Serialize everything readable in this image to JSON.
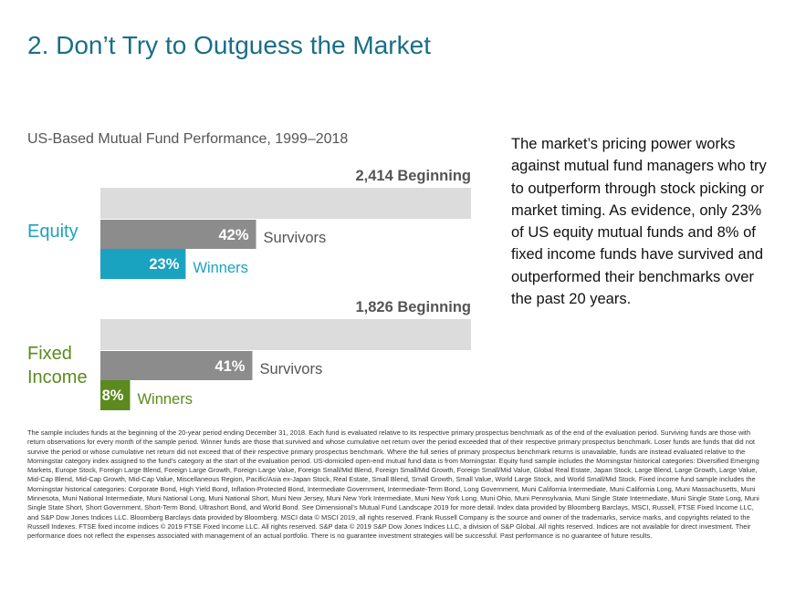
{
  "title": "2. Don’t Try to Outguess the Market",
  "description": "The market’s pricing power works against mutual fund managers who try to outperform through stock picking or market timing. As evidence, only 23% of US equity mutual funds and 8% of fixed income funds have survived and outperformed their benchmarks over the past 20 years.",
  "footnote": "The sample includes funds at the beginning of the 20-year period ending December 31, 2018. Each fund is evaluated relative to its respective primary prospectus benchmark as of the end of the evaluation period. Surviving funds are those with return observations for every month of the sample period. Winner funds are those that survived and whose cumulative net return over the period exceeded that of their respective primary prospectus benchmark. Loser funds are funds that did not survive the period or whose cumulative net return did not exceed that of their respective primary prospectus benchmark. Where the full series of primary prospectus benchmark returns is unavailable, funds are instead evaluated relative to the Morningstar category index assigned to the fund’s category at the start of the evaluation period. US-domiciled open-end mutual fund data is from Morningstar. Equity fund sample includes the Morningstar historical categories: Diversified Emerging Markets, Europe Stock, Foreign Large Blend, Foreign Large Growth, Foreign Large Value, Foreign Small/Mid Blend, Foreign Small/Mid Growth, Foreign Small/Mid Value, Global Real Estate, Japan Stock, Large Blend, Large Growth, Large Value, Mid-Cap Blend, Mid-Cap Growth, Mid-Cap Value, Miscellaneous Region, Pacific/Asia ex-Japan Stock, Real Estate, Small Blend, Small Growth, Small Value, World Large Stock, and World Small/Mid Stock. Fixed income fund sample includes the Morningstar historical categories: Corporate Bond, High Yield Bond, Inflation-Protected Bond, Intermediate Government, Intermediate-Term Bond, Long Government, Muni California Intermediate, Muni California Long, Muni Massachusetts, Muni Minnesota, Muni National Intermediate, Muni National Long, Muni National Short, Muni New Jersey, Muni New York Intermediate, Muni New York Long, Muni Ohio, Muni Pennsylvania, Muni Single State Intermediate, Muni Single State Long, Muni Single State Short, Short Government, Short-Term Bond, Ultrashort Bond, and World Bond. See Dimensional’s Mutual Fund Landscape 2019 for more detail. Index data provided by Bloomberg Barclays, MSCI, Russell, FTSE Fixed Income LLC, and S&P Dow Jones Indices LLC. Bloomberg Barclays data provided by Bloomberg. MSCI data © MSCI 2019, all rights reserved. Frank Russell Company is the source and owner of the trademarks, service marks, and copyrights related to the Russell Indexes. FTSE fixed income indices © 2019 FTSE Fixed Income LLC. All rights reserved. S&P data © 2019 S&P Dow Jones Indices LLC, a division of S&P Global. All rights reserved. Indices are not available for direct investment. Their performance does not reflect the expenses associated with management of an actual portfolio. There is no guarantee investment strategies will be successful. Past performance is no guarantee of future results.",
  "chart_data": {
    "type": "bar",
    "title": "US-Based Mutual Fund Performance, 1999–2018",
    "xlim": [
      0,
      100
    ],
    "series_labels": {
      "survivors": "Survivors",
      "winners": "Winners",
      "beginning": "Beginning"
    },
    "groups": [
      {
        "name": "Equity",
        "name_lines": [
          "Equity"
        ],
        "beginning_count": "2,414",
        "beginning_value": 100,
        "survivors_value": 42,
        "survivors_label": "42%",
        "winners_value": 23,
        "winners_label": "23%",
        "color": "#1aa2c1"
      },
      {
        "name": "Fixed Income",
        "name_lines": [
          "Fixed",
          "Income"
        ],
        "beginning_count": "1,826",
        "beginning_value": 100,
        "survivors_value": 41,
        "survivors_label": "41%",
        "winners_value": 8,
        "winners_label": "8%",
        "color": "#5c8a1e"
      }
    ],
    "colors": {
      "beginning": "#dcdcdc",
      "survivors": "#8c8c8c",
      "beginning_text": "#555555",
      "survivors_text": "#555555"
    }
  }
}
